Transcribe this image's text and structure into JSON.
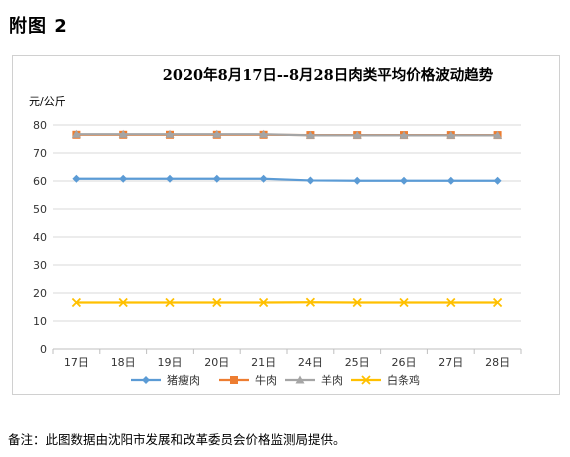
{
  "page": {
    "heading": "附图 2",
    "note": "备注：此图数据由沈阳市发展和改革委员会价格监测局提供。"
  },
  "chart_data": {
    "type": "line",
    "title": "2020年8月17日--8月28日肉类平均价格波动趋势",
    "ylabel": "元/公斤",
    "xlabel": "",
    "ylim": [
      0,
      80
    ],
    "yticks": [
      0,
      10,
      20,
      30,
      40,
      50,
      60,
      70,
      80
    ],
    "grid": true,
    "legend_position": "bottom",
    "categories": [
      "17日",
      "18日",
      "19日",
      "20日",
      "21日",
      "24日",
      "25日",
      "26日",
      "27日",
      "28日"
    ],
    "series": [
      {
        "name": "猪瘦肉",
        "color": "#5B9BD5",
        "marker": "diamond",
        "values": [
          60.8,
          60.8,
          60.8,
          60.8,
          60.8,
          60.2,
          60.1,
          60.1,
          60.1,
          60.1
        ]
      },
      {
        "name": "牛肉",
        "color": "#ED7D31",
        "marker": "square",
        "values": [
          76.5,
          76.5,
          76.5,
          76.5,
          76.5,
          76.4,
          76.4,
          76.4,
          76.4,
          76.4
        ]
      },
      {
        "name": "羊肉",
        "color": "#A5A5A5",
        "marker": "triangle",
        "values": [
          76.7,
          76.7,
          76.7,
          76.7,
          76.7,
          76.3,
          76.3,
          76.3,
          76.3,
          76.3
        ]
      },
      {
        "name": "白条鸡",
        "color": "#FFC000",
        "marker": "x",
        "values": [
          16.6,
          16.6,
          16.6,
          16.6,
          16.6,
          16.7,
          16.6,
          16.6,
          16.6,
          16.6
        ]
      }
    ]
  }
}
